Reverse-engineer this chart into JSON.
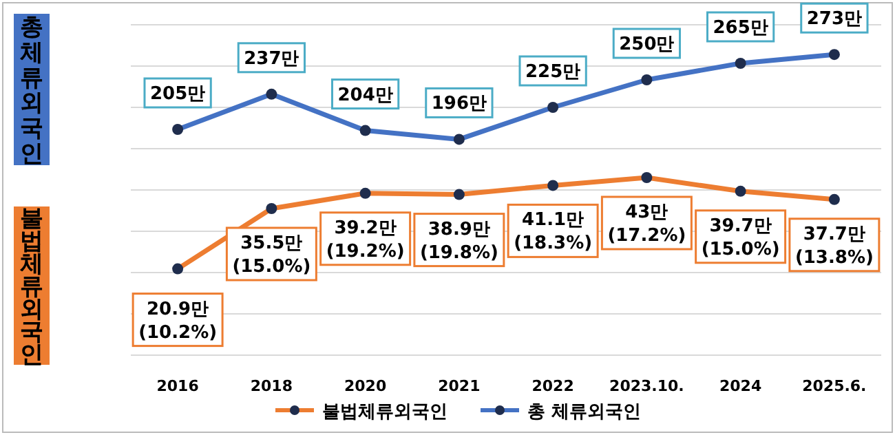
{
  "chart_data": {
    "type": "line",
    "categories": [
      "2016",
      "2018",
      "2020",
      "2021",
      "2022",
      "2023.10.",
      "2024",
      "2025.6."
    ],
    "series": [
      {
        "name": "불법체류외국인",
        "color": "#ed7d31",
        "axis": "y",
        "marker": "circle",
        "values": [
          20.9,
          35.5,
          39.2,
          38.9,
          41.1,
          43,
          39.7,
          37.7
        ],
        "value_labels": [
          "20.9만\n(10.2%)",
          "35.5만\n(15.0%)",
          "39.2만\n(19.2%)",
          "38.9만\n(19.8%)",
          "41.1만\n(18.3%)",
          "43만\n(17.2%)",
          "39.7만\n(15.0%)",
          "37.7만\n(13.8%)"
        ]
      },
      {
        "name": "총 체류외국인",
        "color": "#4472c4",
        "axis": "y2",
        "marker": "circle",
        "values": [
          205,
          237,
          204,
          196,
          225,
          250,
          265,
          273
        ],
        "value_labels": [
          "205만",
          "237만",
          "204만",
          "196만",
          "225만",
          "250만",
          "265만",
          "273만"
        ]
      }
    ],
    "ylim": [
      0,
      80
    ],
    "y2lim": [
      0,
      300
    ],
    "tick_labels": "x",
    "grid": "y",
    "legend": "bottom",
    "line_style": "solid",
    "annotations": [
      "총체류외국인",
      "불법체류외국인"
    ]
  }
}
